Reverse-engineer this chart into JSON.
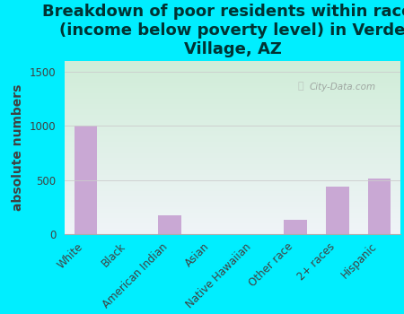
{
  "title": "Breakdown of poor residents within races\n(income below poverty level) in Verde\nVillage, AZ",
  "ylabel": "absolute numbers",
  "categories": [
    "White",
    "Black",
    "American Indian",
    "Asian",
    "Native Hawaiian",
    "Other race",
    "2+ races",
    "Hispanic"
  ],
  "values": [
    1000,
    0,
    175,
    0,
    0,
    130,
    435,
    510
  ],
  "bar_color": "#c9a8d4",
  "ylim": [
    0,
    1600
  ],
  "yticks": [
    0,
    500,
    1000,
    1500
  ],
  "background_outer": "#00eeff",
  "plot_bg_topleft": "#d0edd8",
  "plot_bg_bottomright": "#f0f4f8",
  "watermark": "City-Data.com",
  "title_fontsize": 13,
  "ylabel_fontsize": 10,
  "tick_fontsize": 8.5,
  "title_color": "#003333"
}
